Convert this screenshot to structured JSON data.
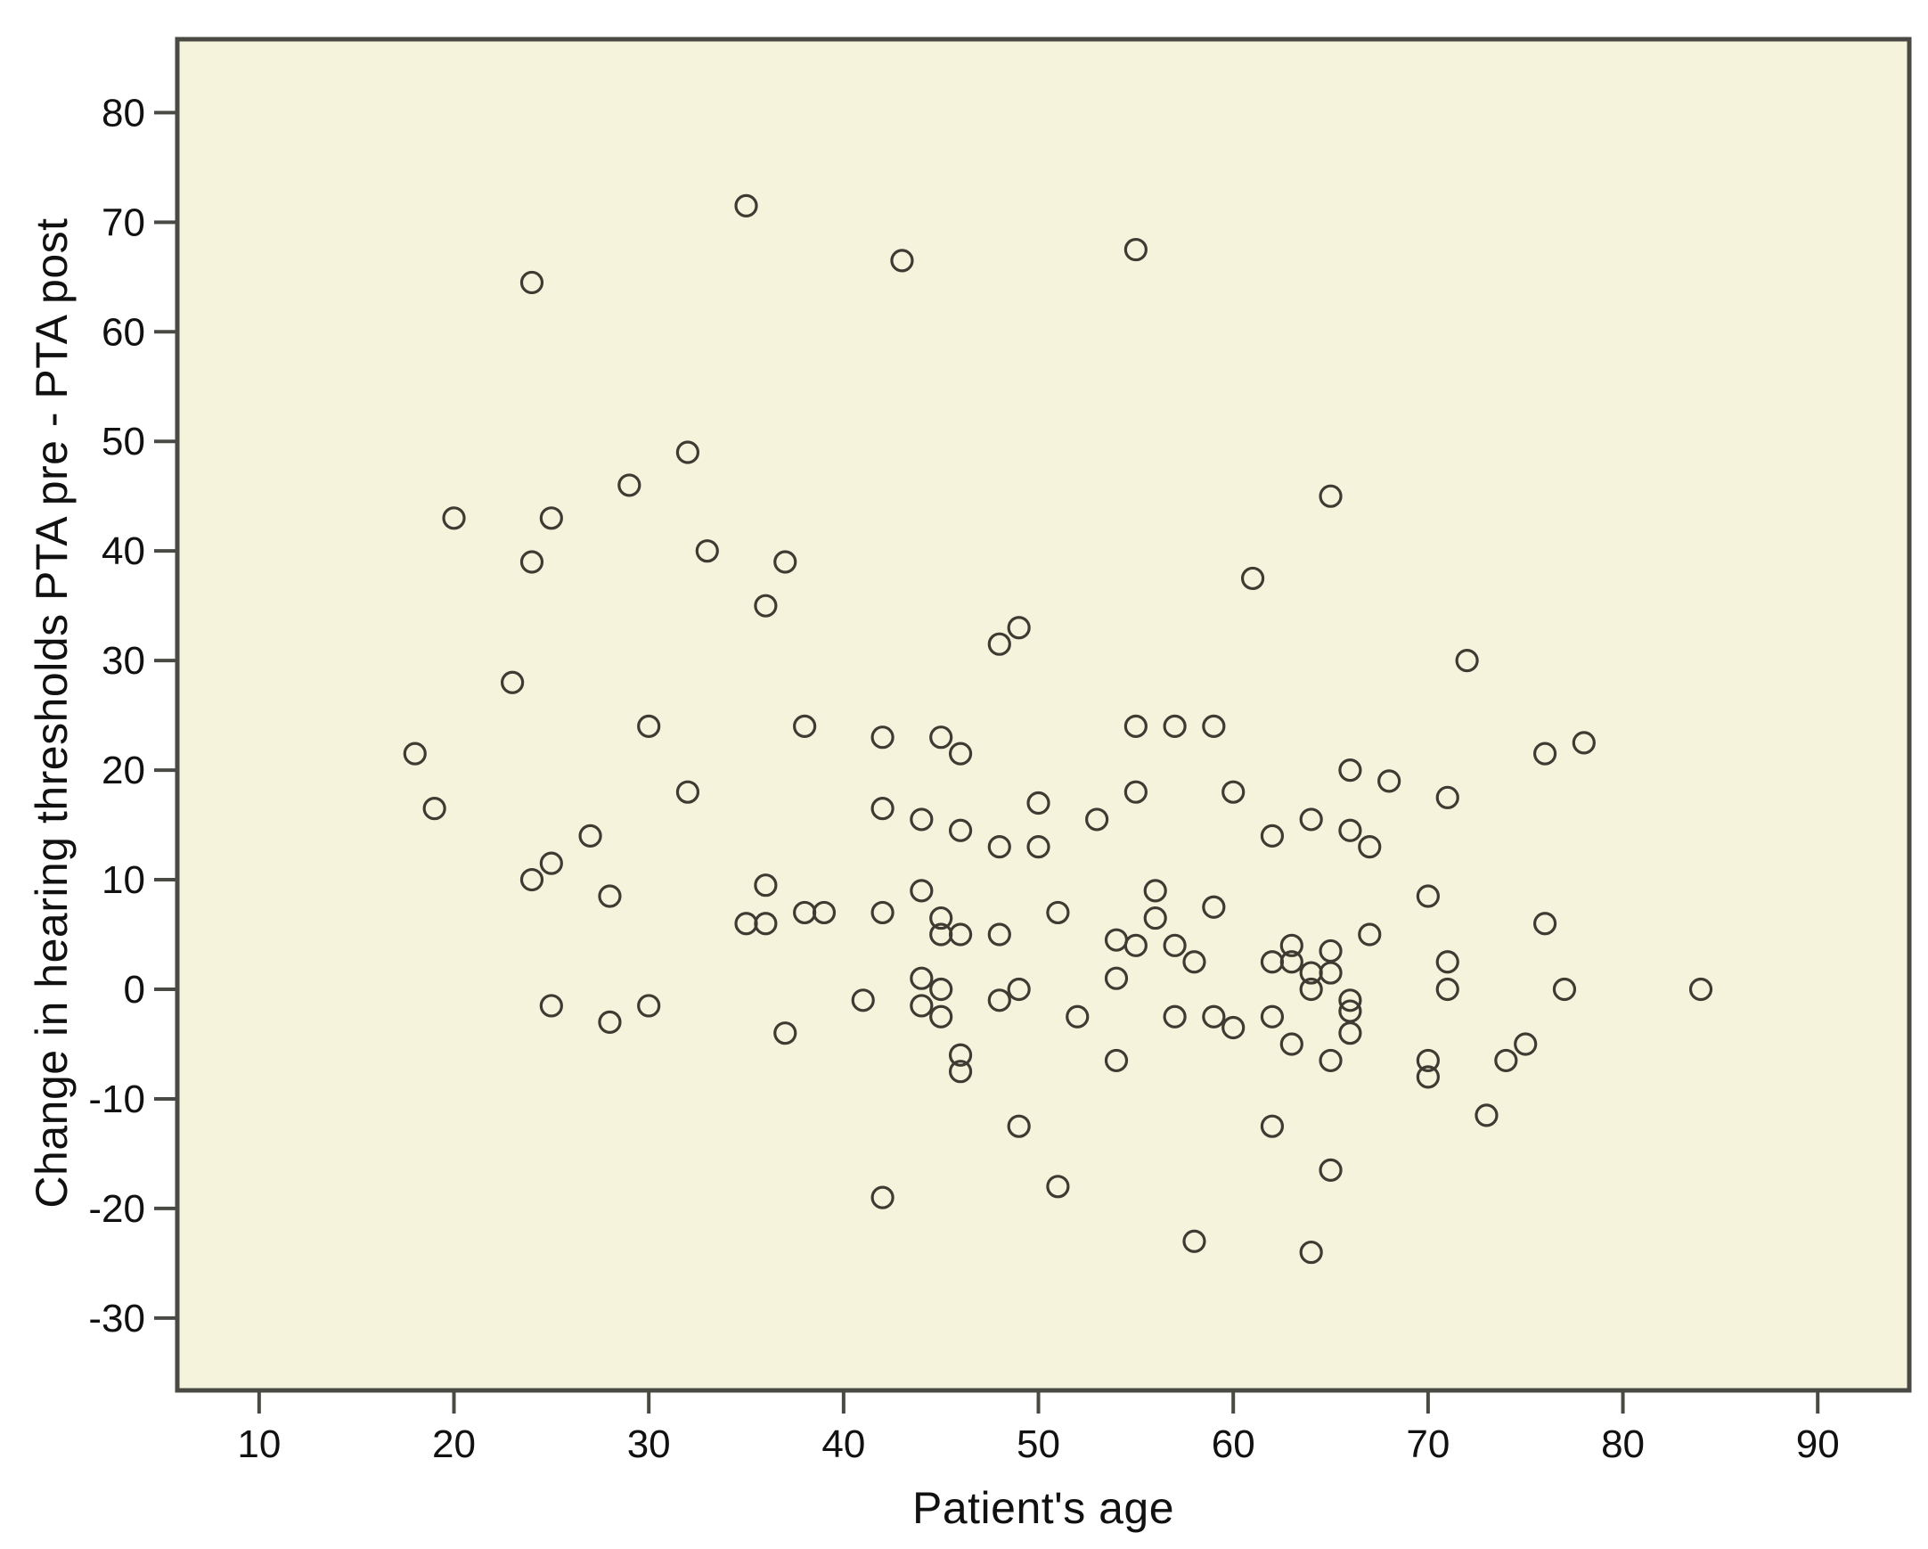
{
  "figure": {
    "background": "#ffffff",
    "plot_background": "#f6f3dd",
    "frame_color": "#4a4a44",
    "text_color": "#111111",
    "marker_color": "#3e3c32"
  },
  "chart_data": {
    "type": "scatter",
    "title": "",
    "xlabel": "Patient's age",
    "ylabel": "Change in hearing thresholds PTA pre - PTA post",
    "legend_position": "none",
    "grid": false,
    "x_ticks": [
      10,
      20,
      30,
      40,
      50,
      60,
      70,
      80,
      90
    ],
    "y_ticks": [
      80,
      70,
      60,
      50,
      40,
      30,
      20,
      10,
      0,
      -10,
      -20,
      -30
    ],
    "xlim": [
      5.8,
      94.7
    ],
    "ylim": [
      -36.6,
      86.7
    ],
    "marker": {
      "shape": "open-circle",
      "radius_px": 11.5,
      "stroke_px": 3.2
    },
    "points": [
      [
        24,
        64.5
      ],
      [
        35,
        71.5
      ],
      [
        43,
        66.5
      ],
      [
        55,
        67.5
      ],
      [
        65,
        45
      ],
      [
        20,
        43
      ],
      [
        25,
        43
      ],
      [
        24,
        39
      ],
      [
        32,
        49
      ],
      [
        29,
        46
      ],
      [
        33,
        40
      ],
      [
        37,
        39
      ],
      [
        36,
        35
      ],
      [
        23,
        28
      ],
      [
        30,
        24
      ],
      [
        38,
        24
      ],
      [
        18,
        21.5
      ],
      [
        19,
        16.5
      ],
      [
        27,
        14
      ],
      [
        25,
        11.5
      ],
      [
        24,
        10
      ],
      [
        28,
        8.5
      ],
      [
        48,
        31.5
      ],
      [
        49,
        33
      ],
      [
        61,
        37.5
      ],
      [
        72,
        30
      ],
      [
        42,
        23
      ],
      [
        45,
        23
      ],
      [
        46,
        21.5
      ],
      [
        32,
        18
      ],
      [
        42,
        16.5
      ],
      [
        44,
        15.5
      ],
      [
        46,
        14.5
      ],
      [
        48,
        13
      ],
      [
        50,
        13
      ],
      [
        50,
        17
      ],
      [
        55,
        24
      ],
      [
        57,
        24
      ],
      [
        59,
        24
      ],
      [
        66,
        20
      ],
      [
        68,
        19
      ],
      [
        71,
        17.5
      ],
      [
        55,
        18
      ],
      [
        53,
        15.5
      ],
      [
        60,
        18
      ],
      [
        64,
        15.5
      ],
      [
        62,
        14
      ],
      [
        66,
        14.5
      ],
      [
        67,
        13
      ],
      [
        76,
        21.5
      ],
      [
        78,
        22.5
      ],
      [
        36,
        9.5
      ],
      [
        38,
        7
      ],
      [
        39,
        7
      ],
      [
        35,
        6
      ],
      [
        36,
        6
      ],
      [
        42,
        7
      ],
      [
        44,
        9
      ],
      [
        45,
        6.5
      ],
      [
        45,
        5
      ],
      [
        46,
        5
      ],
      [
        48,
        5
      ],
      [
        51,
        7
      ],
      [
        56,
        9
      ],
      [
        56,
        6.5
      ],
      [
        54,
        4.5
      ],
      [
        55,
        4
      ],
      [
        59,
        7.5
      ],
      [
        57,
        4
      ],
      [
        58,
        2.5
      ],
      [
        54,
        1
      ],
      [
        70,
        8.5
      ],
      [
        71,
        2.5
      ],
      [
        67,
        5
      ],
      [
        76,
        6
      ],
      [
        62,
        2.5
      ],
      [
        63,
        4
      ],
      [
        63,
        2.5
      ],
      [
        65,
        3.5
      ],
      [
        64,
        1.5
      ],
      [
        65,
        1.5
      ],
      [
        64,
        0
      ],
      [
        71,
        0
      ],
      [
        25,
        -1.5
      ],
      [
        28,
        -3
      ],
      [
        30,
        -1.5
      ],
      [
        37,
        -4
      ],
      [
        41,
        -1
      ],
      [
        44,
        1
      ],
      [
        45,
        0
      ],
      [
        44,
        -1.5
      ],
      [
        45,
        -2.5
      ],
      [
        48,
        -1
      ],
      [
        49,
        0
      ],
      [
        46,
        -6
      ],
      [
        46,
        -7.5
      ],
      [
        49,
        -12.5
      ],
      [
        42,
        -19
      ],
      [
        51,
        -18
      ],
      [
        52,
        -2.5
      ],
      [
        54,
        -6.5
      ],
      [
        57,
        -2.5
      ],
      [
        59,
        -2.5
      ],
      [
        60,
        -3.5
      ],
      [
        62,
        -2.5
      ],
      [
        63,
        -5
      ],
      [
        65,
        -6.5
      ],
      [
        66,
        -1
      ],
      [
        66,
        -2
      ],
      [
        66,
        -4
      ],
      [
        70,
        -6.5
      ],
      [
        70,
        -8
      ],
      [
        62,
        -12.5
      ],
      [
        65,
        -16.5
      ],
      [
        58,
        -23
      ],
      [
        64,
        -24
      ],
      [
        73,
        -11.5
      ],
      [
        74,
        -6.5
      ],
      [
        75,
        -5
      ],
      [
        77,
        0
      ],
      [
        84,
        0
      ]
    ]
  }
}
